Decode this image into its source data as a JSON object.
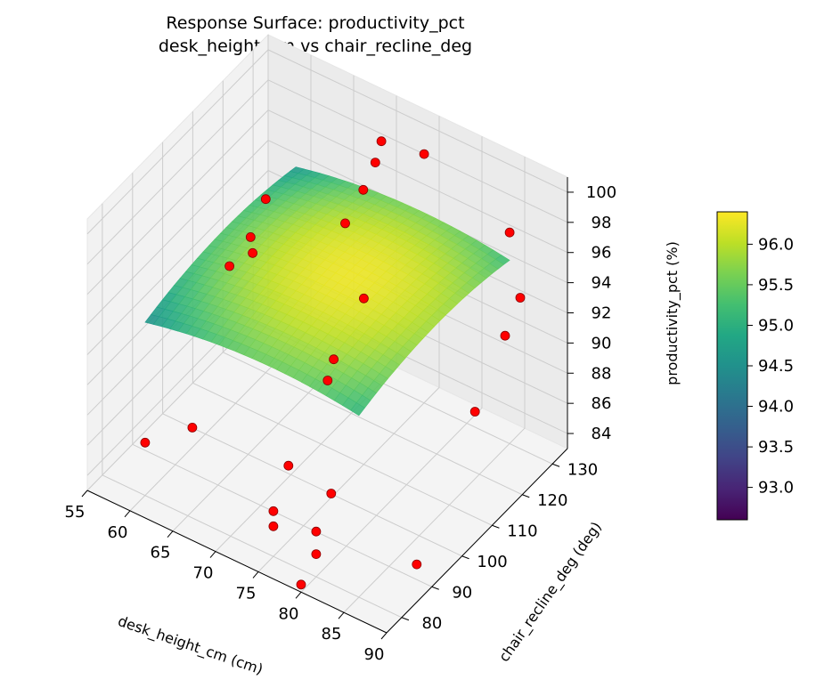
{
  "chart_data": {
    "type": "surface3d",
    "title_line1": "Response Surface: productivity_pct",
    "title_line2": "desk_height_cm vs chair_recline_deg",
    "xlabel": "desk_height_cm (cm)",
    "ylabel": "chair_recline_deg (deg)",
    "zlabel": "productivity_pct (%)",
    "xticks": [
      "55",
      "60",
      "65",
      "70",
      "75",
      "80",
      "85",
      "90"
    ],
    "yticks": [
      "80",
      "90",
      "100",
      "110",
      "120",
      "130"
    ],
    "zticks": [
      "84",
      "86",
      "88",
      "90",
      "92",
      "94",
      "96",
      "98",
      "100"
    ],
    "xlim": [
      55,
      90
    ],
    "ylim": [
      75,
      135
    ],
    "zlim": [
      83,
      101
    ],
    "colorbar": {
      "ticks": [
        "93.0",
        "93.5",
        "94.0",
        "94.5",
        "95.0",
        "95.5",
        "96.0"
      ],
      "range": [
        92.6,
        96.4
      ],
      "colormap": "viridis"
    },
    "surface": {
      "x_range": [
        60,
        85
      ],
      "y_range": [
        80,
        130
      ],
      "z_peak": 96.3,
      "x_center": 75,
      "y_center": 106,
      "x_curvature": 0.0045,
      "y_curvature": 0.0012,
      "xy_coupling": 0.0
    },
    "points": [
      {
        "x": 60,
        "y": 80,
        "z": 86.5
      },
      {
        "x": 62,
        "y": 90,
        "z": 86.0
      },
      {
        "x": 60,
        "y": 120,
        "z": 94.5
      },
      {
        "x": 62,
        "y": 110,
        "z": 93.5
      },
      {
        "x": 60,
        "y": 115,
        "z": 93.0
      },
      {
        "x": 60,
        "y": 108,
        "z": 92.5
      },
      {
        "x": 70,
        "y": 130,
        "z": 99.0
      },
      {
        "x": 70,
        "y": 128,
        "z": 98.0
      },
      {
        "x": 70,
        "y": 124,
        "z": 97.0
      },
      {
        "x": 70,
        "y": 118,
        "z": 96.0
      },
      {
        "x": 75,
        "y": 130,
        "z": 99.5
      },
      {
        "x": 75,
        "y": 110,
        "z": 94.0
      },
      {
        "x": 75,
        "y": 100,
        "z": 92.0
      },
      {
        "x": 75,
        "y": 98,
        "z": 91.0
      },
      {
        "x": 75,
        "y": 85,
        "z": 88.0
      },
      {
        "x": 75,
        "y": 80,
        "z": 86.0
      },
      {
        "x": 75,
        "y": 80,
        "z": 85.0
      },
      {
        "x": 80,
        "y": 80,
        "z": 86.0
      },
      {
        "x": 80,
        "y": 80,
        "z": 84.5
      },
      {
        "x": 80,
        "y": 85,
        "z": 87.5
      },
      {
        "x": 80,
        "y": 75,
        "z": 83.5
      },
      {
        "x": 85,
        "y": 130,
        "z": 97.0
      },
      {
        "x": 88,
        "y": 125,
        "z": 94.5
      },
      {
        "x": 88,
        "y": 120,
        "z": 93.0
      },
      {
        "x": 88,
        "y": 110,
        "z": 90.0
      },
      {
        "x": 90,
        "y": 85,
        "z": 85.5
      }
    ],
    "point_color": "#ff0000",
    "pane_color": "#f2f2f2",
    "grid_color": "#cccccc"
  }
}
